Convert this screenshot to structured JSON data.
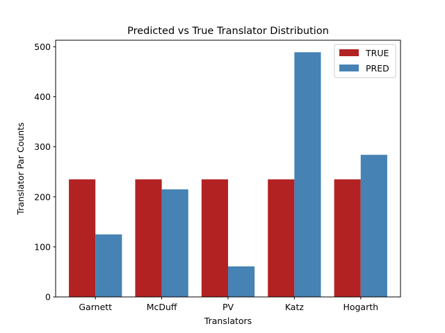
{
  "chart_data": {
    "type": "bar",
    "title": "Predicted vs True Translator Distribution",
    "xlabel": "Translators",
    "ylabel": "Translator Par Counts",
    "categories": [
      "Garnett",
      "McDuff",
      "PV",
      "Katz",
      "Hogarth"
    ],
    "series": [
      {
        "name": "TRUE",
        "color": "#b22222",
        "values": [
          235,
          235,
          235,
          235,
          235
        ]
      },
      {
        "name": "PRED",
        "color": "#4682b4",
        "values": [
          125,
          215,
          61,
          489,
          284
        ]
      }
    ],
    "ylim": [
      0,
      513
    ],
    "yticks": [
      0,
      100,
      200,
      300,
      400,
      500
    ],
    "grid": false,
    "legend_position": "top-right"
  }
}
